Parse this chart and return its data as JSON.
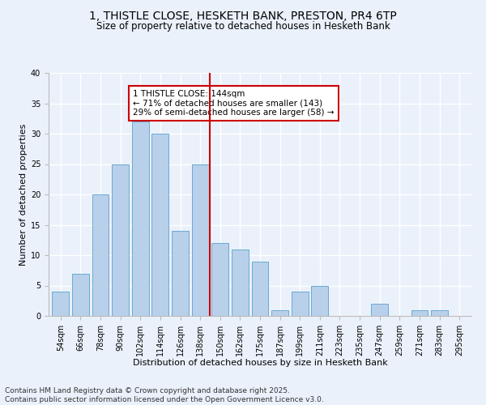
{
  "title": "1, THISTLE CLOSE, HESKETH BANK, PRESTON, PR4 6TP",
  "subtitle": "Size of property relative to detached houses in Hesketh Bank",
  "xlabel": "Distribution of detached houses by size in Hesketh Bank",
  "ylabel": "Number of detached properties",
  "bar_labels": [
    "54sqm",
    "66sqm",
    "78sqm",
    "90sqm",
    "102sqm",
    "114sqm",
    "126sqm",
    "138sqm",
    "150sqm",
    "162sqm",
    "175sqm",
    "187sqm",
    "199sqm",
    "211sqm",
    "223sqm",
    "235sqm",
    "247sqm",
    "259sqm",
    "271sqm",
    "283sqm",
    "295sqm"
  ],
  "bar_values": [
    4,
    7,
    20,
    25,
    32,
    30,
    14,
    25,
    12,
    11,
    9,
    1,
    4,
    5,
    0,
    0,
    2,
    0,
    1,
    1,
    0
  ],
  "bar_color": "#b8d0ea",
  "bar_edgecolor": "#6aaad4",
  "vline_x_idx": 7.5,
  "vline_color": "#cc0000",
  "annotation_text": "1 THISTLE CLOSE: 144sqm\n← 71% of detached houses are smaller (143)\n29% of semi-detached houses are larger (58) →",
  "annotation_box_color": "#ffffff",
  "annotation_box_edgecolor": "#cc0000",
  "ylim": [
    0,
    40
  ],
  "yticks": [
    0,
    5,
    10,
    15,
    20,
    25,
    30,
    35,
    40
  ],
  "footer_line1": "Contains HM Land Registry data © Crown copyright and database right 2025.",
  "footer_line2": "Contains public sector information licensed under the Open Government Licence v3.0.",
  "bg_color": "#eaf1fb",
  "grid_color": "#ffffff",
  "title_fontsize": 10,
  "subtitle_fontsize": 8.5,
  "axis_label_fontsize": 8,
  "tick_fontsize": 7,
  "annotation_fontsize": 7.5,
  "footer_fontsize": 6.5
}
